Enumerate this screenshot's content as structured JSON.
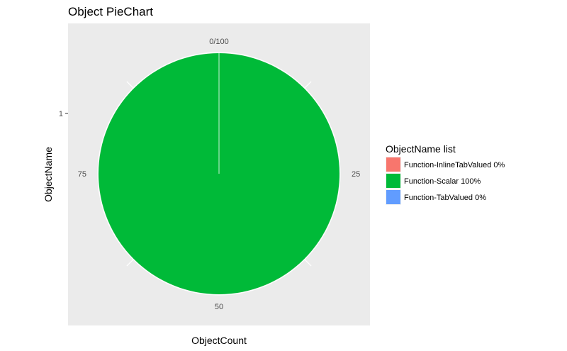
{
  "chart_data": {
    "type": "pie",
    "title": "Object PieChart",
    "xlabel": "ObjectCount",
    "ylabel": "ObjectName",
    "y_tick_labels": [
      "1"
    ],
    "angle_ticks": [
      {
        "value": 0,
        "label": "0/100"
      },
      {
        "value": 25,
        "label": "25"
      },
      {
        "value": 50,
        "label": "50"
      },
      {
        "value": 75,
        "label": "75"
      }
    ],
    "total": 100,
    "slices": [
      {
        "name": "Function-InlineTabValued",
        "label": "Function-InlineTabValued 0%",
        "value": 0,
        "color": "#F8766D"
      },
      {
        "name": "Function-Scalar",
        "label": "Function-Scalar 100%",
        "value": 100,
        "color": "#00BA38"
      },
      {
        "name": "Function-TabValued",
        "label": "Function-TabValued 0%",
        "value": 0,
        "color": "#619CFF"
      }
    ],
    "legend": {
      "title": "ObjectName list",
      "position": "right"
    },
    "panel_background": "#EBEBEB",
    "grid_color": "#FFFFFF"
  }
}
